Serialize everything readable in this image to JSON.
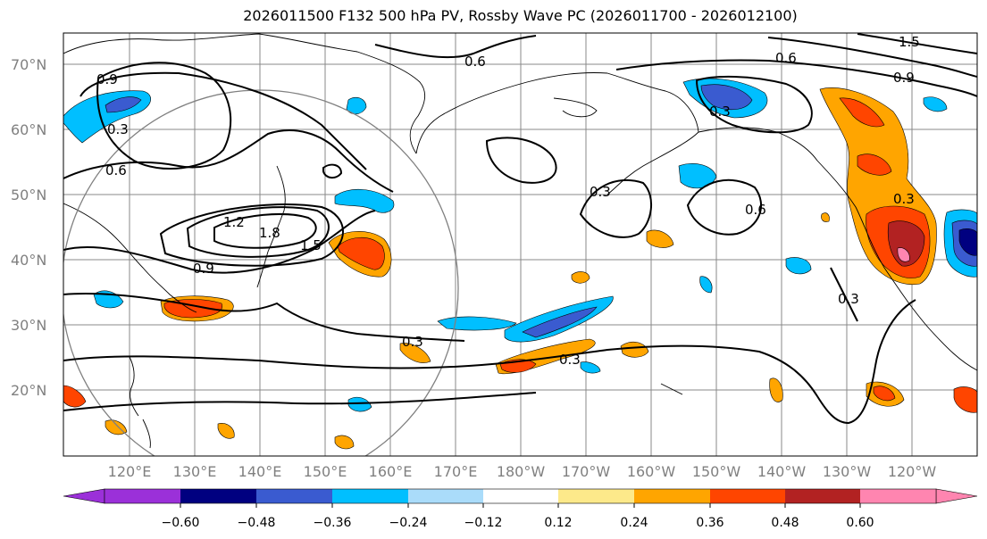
{
  "title": "2026011500 F132 500 hPa PV, Rossby Wave PC (2026011700 - 2026012100)",
  "colors": {
    "purple": "#9b30d9",
    "navy": "#000080",
    "royal": "#3a5bd0",
    "sky": "#00bfff",
    "lightblue": "#aadcfa",
    "white": "#ffffff",
    "lightyellow": "#fde98a",
    "orange": "#ffa500",
    "redorange": "#ff4500",
    "darkred": "#b22222",
    "pink": "#ff85b0"
  },
  "map": {
    "lat_ticks": [
      "70°N",
      "60°N",
      "50°N",
      "40°N",
      "30°N",
      "20°N"
    ],
    "lon_ticks": [
      "120°E",
      "130°E",
      "140°E",
      "150°E",
      "160°E",
      "170°E",
      "180°W",
      "170°W",
      "160°W",
      "150°W",
      "140°W",
      "130°W",
      "120°W"
    ],
    "contour_labels": [
      "0.9",
      "0.3",
      "0.6",
      "1.2",
      "1.8",
      "1.5",
      "0.9",
      "0.6",
      "0.3",
      "0.6",
      "1.5",
      "0.9",
      "0.6",
      "0.3",
      "0.3",
      "0.3",
      "0.3",
      "0.3"
    ]
  },
  "colorbar": {
    "ticks": [
      "−0.60",
      "−0.48",
      "−0.36",
      "−0.24",
      "−0.12",
      "0.12",
      "0.24",
      "0.36",
      "0.48",
      "0.60"
    ],
    "colors": [
      "#9b30d9",
      "#000080",
      "#3a5bd0",
      "#00bfff",
      "#aadcfa",
      "#ffffff",
      "#fde98a",
      "#ffa500",
      "#ff4500",
      "#b22222",
      "#ff85b0"
    ]
  }
}
